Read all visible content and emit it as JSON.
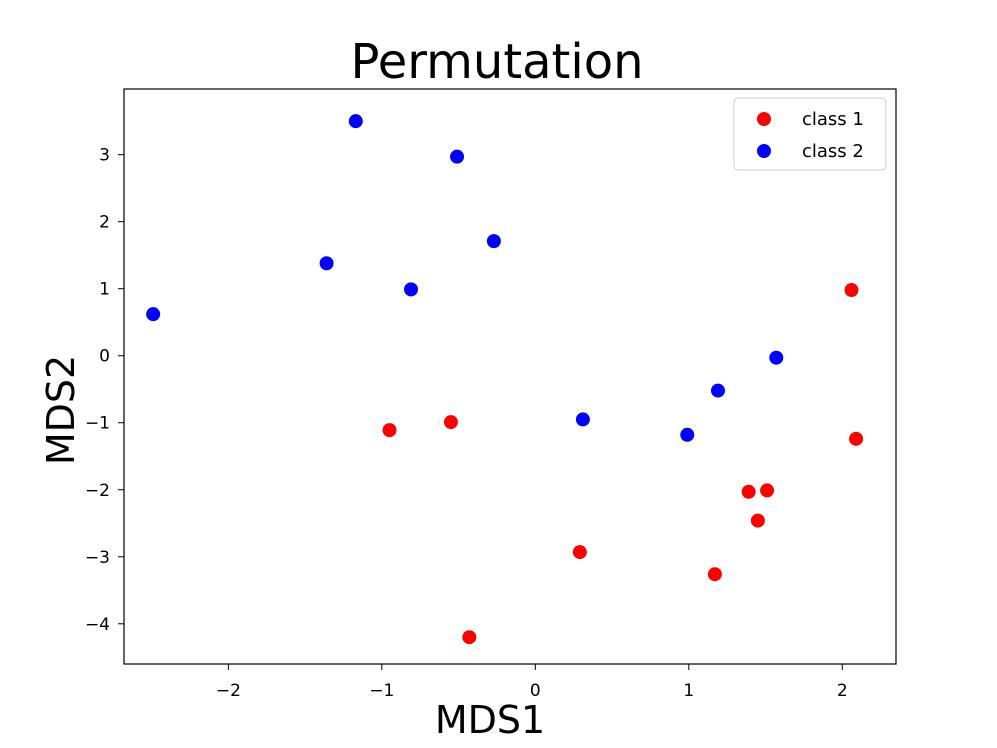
{
  "chart_data": {
    "type": "scatter",
    "title": "Permutation",
    "xlabel": "MDS1",
    "ylabel": "MDS2",
    "xlim": [
      -2.68,
      2.35
    ],
    "ylim": [
      -4.6,
      3.98
    ],
    "xticks": [
      -2,
      -1,
      0,
      1,
      2
    ],
    "yticks": [
      -4,
      -3,
      -2,
      -1,
      0,
      1,
      2,
      3
    ],
    "xtick_labels": [
      "−2",
      "−1",
      "0",
      "1",
      "2"
    ],
    "ytick_labels": [
      "−4",
      "−3",
      "−2",
      "−1",
      "0",
      "1",
      "2",
      "3"
    ],
    "grid": false,
    "legend_position": "top-right",
    "series": [
      {
        "name": "class 1",
        "color": "#ff0000",
        "x": [
          2.06,
          2.09,
          -0.95,
          -0.55,
          1.39,
          1.51,
          1.45,
          0.29,
          1.17,
          -0.43
        ],
        "y": [
          0.98,
          -1.24,
          -1.11,
          -0.99,
          -2.03,
          -2.01,
          -2.46,
          -2.93,
          -3.26,
          -4.2
        ]
      },
      {
        "name": "class 2",
        "color": "#0000ff",
        "x": [
          -1.17,
          -0.51,
          -0.27,
          -1.36,
          -0.81,
          -2.49,
          1.57,
          1.19,
          0.31,
          0.99
        ],
        "y": [
          3.5,
          2.97,
          1.71,
          1.38,
          0.99,
          0.62,
          -0.03,
          -0.52,
          -0.95,
          -1.18
        ]
      }
    ]
  }
}
